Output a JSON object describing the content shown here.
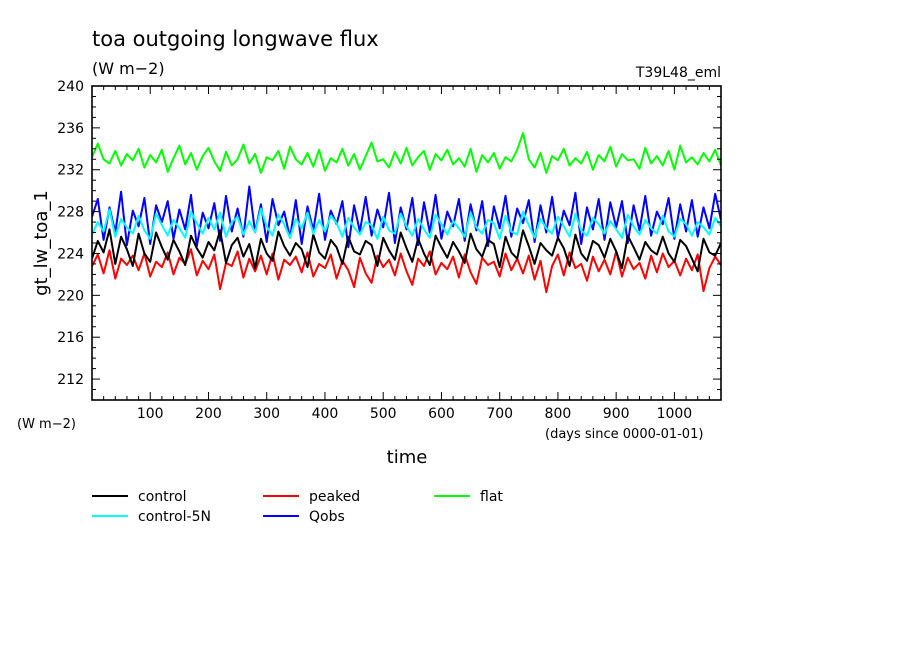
{
  "chart_data": {
    "type": "line",
    "title": "toa outgoing longwave flux",
    "units": "(W m−2)",
    "run_tag": "T39L48_eml",
    "ylabel": "gt_lw_toa_1",
    "yunits": "(W m−2)",
    "xlabel": "time",
    "xunits": "(days since 0000-01-01)",
    "xlim": [
      0,
      1080
    ],
    "ylim": [
      210,
      240
    ],
    "yticks": [
      212,
      216,
      220,
      224,
      228,
      232,
      236,
      240
    ],
    "xticks": [
      100,
      200,
      300,
      400,
      500,
      600,
      700,
      800,
      900,
      1000
    ],
    "grid": false,
    "legend_position": "below",
    "x": [
      0,
      10,
      20,
      30,
      40,
      50,
      60,
      70,
      80,
      90,
      100,
      110,
      120,
      130,
      140,
      150,
      160,
      170,
      180,
      190,
      200,
      210,
      220,
      230,
      240,
      250,
      260,
      270,
      280,
      290,
      300,
      310,
      320,
      330,
      340,
      350,
      360,
      370,
      380,
      390,
      400,
      410,
      420,
      430,
      440,
      450,
      460,
      470,
      480,
      490,
      500,
      510,
      520,
      530,
      540,
      550,
      560,
      570,
      580,
      590,
      600,
      610,
      620,
      630,
      640,
      650,
      660,
      670,
      680,
      690,
      700,
      710,
      720,
      730,
      740,
      750,
      760,
      770,
      780,
      790,
      800,
      810,
      820,
      830,
      840,
      850,
      860,
      870,
      880,
      890,
      900,
      910,
      920,
      930,
      940,
      950,
      960,
      970,
      980,
      990,
      1000,
      1010,
      1020,
      1030,
      1040,
      1050,
      1060,
      1070,
      1080
    ],
    "series": [
      {
        "name": "control",
        "color": "#000000",
        "values": [
          223.5,
          225.2,
          224.1,
          226.3,
          223.0,
          225.6,
          224.4,
          222.8,
          225.9,
          224.0,
          223.2,
          226.0,
          224.6,
          223.4,
          225.3,
          224.2,
          222.9,
          225.7,
          224.5,
          223.6,
          225.1,
          224.3,
          226.2,
          223.1,
          224.8,
          225.5,
          223.7,
          224.9,
          222.6,
          225.4,
          224.0,
          223.3,
          226.1,
          224.7,
          223.8,
          225.0,
          224.4,
          222.7,
          225.8,
          224.1,
          223.5,
          225.3,
          224.6,
          223.0,
          225.6,
          224.2,
          223.9,
          225.2,
          224.8,
          222.8,
          225.5,
          224.3,
          223.4,
          226.0,
          224.5,
          223.2,
          225.4,
          224.0,
          222.9,
          225.7,
          224.6,
          223.6,
          225.1,
          224.2,
          223.1,
          225.9,
          224.4,
          223.7,
          225.3,
          224.9,
          222.7,
          225.6,
          224.1,
          223.5,
          226.2,
          224.7,
          223.0,
          225.0,
          224.3,
          223.8,
          225.5,
          224.5,
          222.8,
          225.8,
          224.0,
          223.3,
          225.2,
          224.8,
          223.6,
          225.4,
          224.2,
          222.6,
          225.7,
          224.6,
          223.4,
          225.1,
          224.3,
          223.9,
          225.6,
          224.0,
          223.2,
          225.3,
          224.7,
          223.5,
          222.3,
          225.4,
          224.1,
          223.8,
          225.0
        ]
      },
      {
        "name": "peaked",
        "color": "#ff0000",
        "values": [
          222.8,
          223.9,
          222.1,
          224.3,
          221.6,
          223.5,
          222.9,
          223.8,
          222.4,
          224.0,
          221.8,
          223.2,
          222.7,
          224.1,
          222.0,
          223.6,
          223.0,
          224.4,
          221.9,
          223.3,
          222.5,
          223.9,
          220.6,
          223.1,
          222.8,
          224.2,
          221.7,
          223.5,
          222.3,
          223.8,
          222.0,
          224.0,
          221.5,
          223.4,
          222.9,
          223.7,
          222.2,
          224.1,
          221.8,
          223.0,
          222.6,
          223.9,
          221.6,
          223.3,
          222.4,
          220.8,
          223.6,
          222.1,
          221.2,
          223.8,
          222.7,
          223.4,
          221.9,
          224.0,
          222.3,
          221.0,
          223.5,
          222.8,
          224.2,
          222.0,
          223.1,
          222.5,
          223.7,
          221.7,
          223.9,
          222.2,
          221.1,
          223.6,
          222.9,
          223.2,
          221.8,
          224.0,
          222.4,
          223.5,
          222.1,
          223.8,
          221.5,
          223.3,
          220.3,
          222.8,
          223.9,
          221.9,
          224.1,
          222.6,
          223.0,
          221.4,
          223.7,
          222.3,
          223.4,
          222.0,
          224.2,
          221.8,
          223.6,
          222.5,
          223.1,
          221.6,
          223.8,
          222.2,
          224.0,
          222.7,
          223.3,
          221.9,
          223.5,
          222.4,
          223.9,
          220.4,
          222.6,
          223.7,
          222.9
        ]
      },
      {
        "name": "flat",
        "color": "#00ff00",
        "values": [
          233.2,
          234.5,
          233.0,
          232.6,
          233.8,
          232.4,
          233.5,
          232.9,
          234.0,
          232.2,
          233.4,
          232.7,
          233.9,
          231.8,
          233.1,
          234.3,
          232.5,
          233.6,
          232.0,
          233.3,
          234.1,
          232.8,
          231.9,
          233.7,
          232.4,
          233.0,
          234.4,
          232.6,
          233.5,
          231.7,
          233.2,
          232.9,
          233.8,
          232.1,
          234.2,
          233.0,
          232.5,
          233.6,
          232.3,
          233.9,
          231.9,
          233.1,
          232.7,
          234.0,
          232.4,
          233.5,
          232.0,
          233.3,
          234.6,
          232.8,
          233.0,
          232.2,
          233.7,
          232.6,
          234.1,
          232.4,
          233.2,
          233.8,
          232.0,
          233.5,
          232.9,
          233.9,
          232.5,
          233.1,
          232.3,
          234.0,
          231.8,
          233.4,
          232.7,
          233.6,
          232.1,
          233.2,
          232.8,
          233.9,
          235.5,
          233.0,
          232.2,
          233.6,
          231.7,
          233.3,
          232.9,
          234.0,
          232.4,
          233.1,
          232.6,
          233.7,
          232.0,
          233.4,
          232.8,
          234.2,
          232.3,
          233.5,
          232.9,
          233.0,
          232.1,
          234.1,
          232.6,
          233.3,
          232.4,
          233.8,
          232.0,
          234.3,
          232.7,
          233.2,
          232.5,
          233.6,
          232.8,
          233.9,
          232.4
        ]
      },
      {
        "name": "control-5N",
        "color": "#00ffff",
        "values": [
          225.8,
          227.0,
          226.1,
          228.2,
          225.6,
          227.3,
          226.5,
          225.9,
          227.6,
          226.2,
          225.4,
          227.8,
          226.7,
          225.7,
          227.2,
          226.4,
          225.5,
          228.0,
          226.9,
          225.9,
          227.4,
          226.3,
          227.9,
          225.6,
          227.0,
          227.5,
          225.8,
          227.1,
          226.0,
          228.3,
          226.6,
          225.7,
          227.7,
          226.8,
          225.5,
          227.3,
          226.4,
          227.9,
          225.9,
          227.2,
          226.1,
          227.6,
          226.9,
          225.6,
          227.4,
          226.5,
          225.8,
          227.0,
          226.7,
          225.4,
          227.5,
          226.2,
          225.9,
          227.8,
          226.6,
          225.7,
          227.3,
          226.3,
          225.5,
          227.7,
          226.8,
          225.8,
          227.1,
          226.4,
          225.6,
          227.9,
          226.5,
          225.9,
          227.2,
          226.9,
          225.4,
          227.6,
          226.1,
          225.8,
          228.0,
          226.7,
          225.5,
          227.3,
          226.4,
          225.9,
          227.5,
          226.6,
          225.6,
          227.8,
          226.2,
          225.7,
          227.4,
          226.8,
          225.9,
          227.1,
          226.3,
          225.5,
          227.7,
          226.6,
          225.8,
          227.2,
          226.4,
          225.9,
          227.6,
          226.1,
          225.6,
          227.3,
          226.8,
          225.7,
          227.0,
          226.5,
          225.8,
          227.4,
          226.6
        ]
      },
      {
        "name": "Qobs",
        "color": "#0000ff",
        "values": [
          227.5,
          229.2,
          225.3,
          228.4,
          226.0,
          229.9,
          224.8,
          228.1,
          226.6,
          229.3,
          224.9,
          228.6,
          227.0,
          229.0,
          225.4,
          228.2,
          226.3,
          229.6,
          224.7,
          227.9,
          226.4,
          228.8,
          225.2,
          229.5,
          226.1,
          228.3,
          225.6,
          230.4,
          226.0,
          228.7,
          225.1,
          229.2,
          226.7,
          228.0,
          225.5,
          229.1,
          224.9,
          228.5,
          226.2,
          229.7,
          225.3,
          228.1,
          226.8,
          229.0,
          224.6,
          228.6,
          226.1,
          229.4,
          225.7,
          228.2,
          226.5,
          229.8,
          225.0,
          228.4,
          226.3,
          229.3,
          224.8,
          228.9,
          226.0,
          229.6,
          225.4,
          228.0,
          226.6,
          229.2,
          225.2,
          228.7,
          226.2,
          229.0,
          224.7,
          228.5,
          226.4,
          229.5,
          225.6,
          228.3,
          226.9,
          229.1,
          225.1,
          228.6,
          226.0,
          229.4,
          225.5,
          228.1,
          226.7,
          229.8,
          224.9,
          228.4,
          226.3,
          229.2,
          225.3,
          228.9,
          226.5,
          229.0,
          225.0,
          228.6,
          226.2,
          229.5,
          225.7,
          228.0,
          226.8,
          229.3,
          225.4,
          228.7,
          226.1,
          229.1,
          225.6,
          228.4,
          226.4,
          229.7,
          227.2
        ]
      }
    ]
  }
}
